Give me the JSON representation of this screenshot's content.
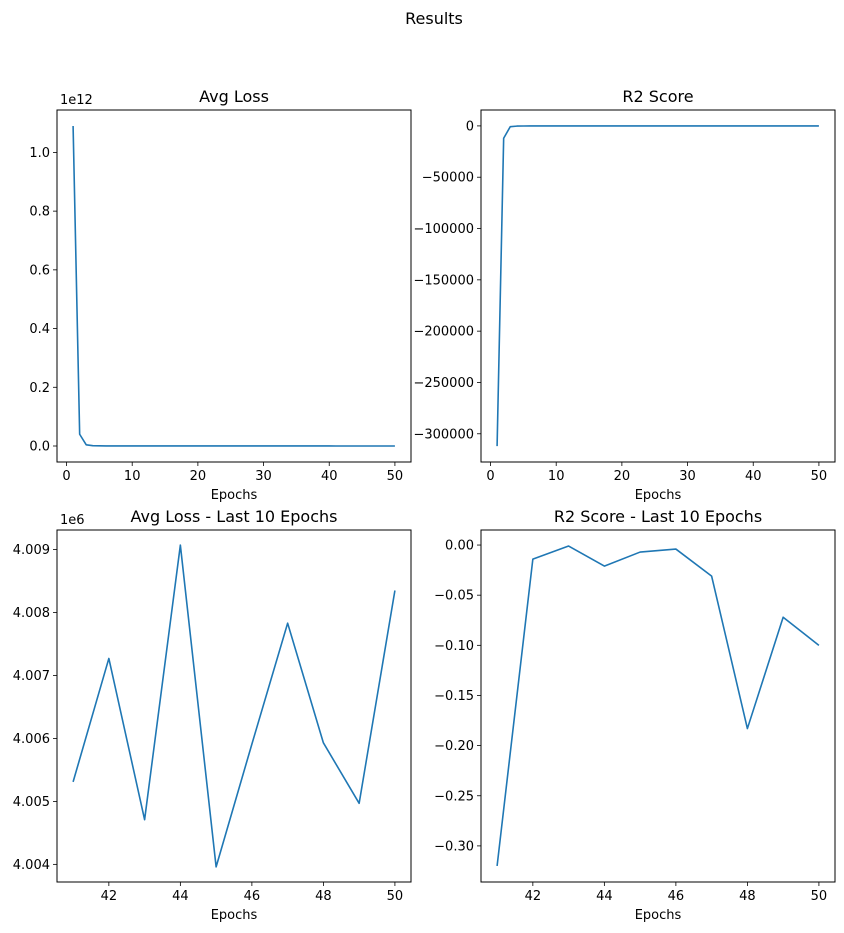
{
  "figure": {
    "title": "Results"
  },
  "chart_data": [
    {
      "type": "line",
      "title": "Avg Loss",
      "xlabel": "Epochs",
      "ylabel": "",
      "offset_label": "1e12",
      "xlim": [
        -1.45,
        52.45
      ],
      "ylim": [
        -0.0545,
        1.1445
      ],
      "xticks": [
        0,
        10,
        20,
        30,
        40,
        50
      ],
      "yticks": [
        0.0,
        0.2,
        0.4,
        0.6,
        0.8,
        1.0
      ],
      "ytick_labels": [
        "0.0",
        "0.2",
        "0.4",
        "0.6",
        "0.8",
        "1.0"
      ],
      "color": "#1f77b4",
      "x": [
        1,
        2,
        3,
        4,
        5,
        6,
        7,
        8,
        9,
        10,
        11,
        12,
        13,
        14,
        15,
        16,
        17,
        18,
        19,
        20,
        21,
        22,
        23,
        24,
        25,
        26,
        27,
        28,
        29,
        30,
        31,
        32,
        33,
        34,
        35,
        36,
        37,
        38,
        39,
        40,
        41,
        42,
        43,
        44,
        45,
        46,
        47,
        48,
        49,
        50
      ],
      "y": [
        1.09,
        0.04,
        0.004,
        0.001,
        0.0005,
        0.0003,
        0.0002,
        0.0001,
        0.0001,
        0.0001,
        0.0001,
        0.0001,
        0.0001,
        0.0001,
        0.0001,
        0.0001,
        0.0001,
        0.0001,
        0.0001,
        0.0001,
        0.0001,
        0.0001,
        0.0001,
        0.0001,
        0.0001,
        0.0001,
        0.0001,
        0.0001,
        0.0001,
        0.0001,
        0.0001,
        0.0001,
        0.0001,
        0.0001,
        0.0001,
        0.0001,
        0.0001,
        0.0001,
        0.0001,
        0.0001,
        4e-06,
        4e-06,
        4e-06,
        4e-06,
        4e-06,
        4e-06,
        4e-06,
        4e-06,
        4e-06,
        4e-06
      ]
    },
    {
      "type": "line",
      "title": "R2 Score",
      "xlabel": "Epochs",
      "ylabel": "",
      "offset_label": "",
      "xlim": [
        -1.45,
        52.45
      ],
      "ylim": [
        -327500,
        15500
      ],
      "xticks": [
        0,
        10,
        20,
        30,
        40,
        50
      ],
      "yticks": [
        0,
        -50000,
        -100000,
        -150000,
        -200000,
        -250000,
        -300000
      ],
      "ytick_labels": [
        "0",
        "−50000",
        "−100000",
        "−150000",
        "−200000",
        "−250000",
        "−300000"
      ],
      "color": "#1f77b4",
      "x": [
        1,
        2,
        3,
        4,
        5,
        6,
        7,
        8,
        9,
        10,
        11,
        12,
        13,
        14,
        15,
        16,
        17,
        18,
        19,
        20,
        21,
        22,
        23,
        24,
        25,
        26,
        27,
        28,
        29,
        30,
        31,
        32,
        33,
        34,
        35,
        36,
        37,
        38,
        39,
        40,
        41,
        42,
        43,
        44,
        45,
        46,
        47,
        48,
        49,
        50
      ],
      "y": [
        -312000,
        -12000,
        -800,
        -200,
        -100,
        -50,
        -20,
        -10,
        -5,
        -5,
        -3,
        -3,
        -2,
        -2,
        -2,
        -1,
        -1,
        -1,
        -1,
        -1,
        -1,
        -1,
        -1,
        -1,
        -1,
        -1,
        -1,
        -1,
        -1,
        -1,
        -1,
        -1,
        -1,
        -1,
        -1,
        -1,
        -1,
        -1,
        -1,
        -1,
        -0.32,
        -0.014,
        -0.001,
        -0.021,
        -0.007,
        -0.004,
        -0.031,
        -0.183,
        -0.072,
        -0.1
      ]
    },
    {
      "type": "line",
      "title": "Avg Loss - Last 10 Epochs",
      "xlabel": "Epochs",
      "ylabel": "",
      "offset_label": "1e6",
      "xlim": [
        40.55,
        50.45
      ],
      "ylim": [
        4.00372,
        4.00931
      ],
      "xticks": [
        42,
        44,
        46,
        48,
        50
      ],
      "yticks": [
        4.004,
        4.005,
        4.006,
        4.007,
        4.008,
        4.009
      ],
      "ytick_labels": [
        "4.004",
        "4.005",
        "4.006",
        "4.007",
        "4.008",
        "4.009"
      ],
      "color": "#1f77b4",
      "x": [
        41,
        42,
        43,
        44,
        45,
        46,
        47,
        48,
        49,
        50
      ],
      "y": [
        4.00531,
        4.00727,
        4.00471,
        4.00907,
        4.00396,
        4.00591,
        4.00783,
        4.00593,
        4.00497,
        4.00835
      ]
    },
    {
      "type": "line",
      "title": "R2 Score - Last 10 Epochs",
      "xlabel": "Epochs",
      "ylabel": "",
      "offset_label": "",
      "xlim": [
        40.55,
        50.45
      ],
      "ylim": [
        -0.336,
        0.015
      ],
      "xticks": [
        42,
        44,
        46,
        48,
        50
      ],
      "yticks": [
        0.0,
        -0.05,
        -0.1,
        -0.15,
        -0.2,
        -0.25,
        -0.3
      ],
      "ytick_labels": [
        "0.00",
        "−0.05",
        "−0.10",
        "−0.15",
        "−0.20",
        "−0.25",
        "−0.30"
      ],
      "color": "#1f77b4",
      "x": [
        41,
        42,
        43,
        44,
        45,
        46,
        47,
        48,
        49,
        50
      ],
      "y": [
        -0.32,
        -0.014,
        -0.001,
        -0.021,
        -0.007,
        -0.004,
        -0.031,
        -0.183,
        -0.072,
        -0.1
      ]
    }
  ]
}
